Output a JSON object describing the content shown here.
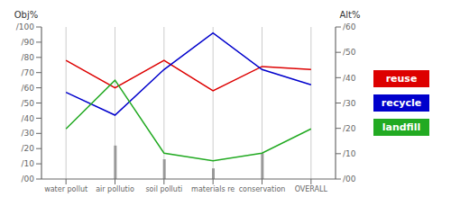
{
  "chart_data": {
    "type": "line",
    "categories": [
      "water pollut",
      "air pollutio",
      "soil polluti",
      "materials re",
      "conservation",
      "OVERALL"
    ],
    "series": [
      {
        "name": "reuse",
        "color": "#dd0000",
        "values": [
          78,
          60,
          78,
          58,
          74,
          72
        ]
      },
      {
        "name": "recycle",
        "color": "#0000cc",
        "values": [
          57,
          42,
          72,
          96,
          72,
          62
        ]
      },
      {
        "name": "landfill",
        "color": "#22aa22",
        "values": [
          33,
          65,
          17,
          12,
          17,
          33
        ]
      },
      {
        "type": "bar",
        "color": "#999999",
        "values": [
          null,
          22,
          13,
          7,
          17,
          null
        ]
      }
    ],
    "y_label": "Obj%",
    "y2_label": "Alt%",
    "ylim": [
      0,
      100
    ],
    "yticks": [
      {
        "value": 0,
        "label": "/00"
      },
      {
        "value": 10,
        "label": "/10"
      },
      {
        "value": 20,
        "label": "/20"
      },
      {
        "value": 30,
        "label": "/30"
      },
      {
        "value": 40,
        "label": "/40"
      },
      {
        "value": 50,
        "label": "/50"
      },
      {
        "value": 60,
        "label": "/60"
      },
      {
        "value": 70,
        "label": "/70"
      },
      {
        "value": 80,
        "label": "/80"
      },
      {
        "value": 90,
        "label": "/90"
      },
      {
        "value": 100,
        "label": "/100"
      }
    ],
    "y2lim": [
      0,
      60
    ],
    "y2ticks": [
      {
        "value": 0,
        "label": "/00"
      },
      {
        "value": 10,
        "label": "/10"
      },
      {
        "value": 20,
        "label": "/20"
      },
      {
        "value": 30,
        "label": "/30"
      },
      {
        "value": 40,
        "label": "/40"
      },
      {
        "value": 50,
        "label": "/50"
      },
      {
        "value": 60,
        "label": "/60"
      }
    ],
    "grid": true
  }
}
